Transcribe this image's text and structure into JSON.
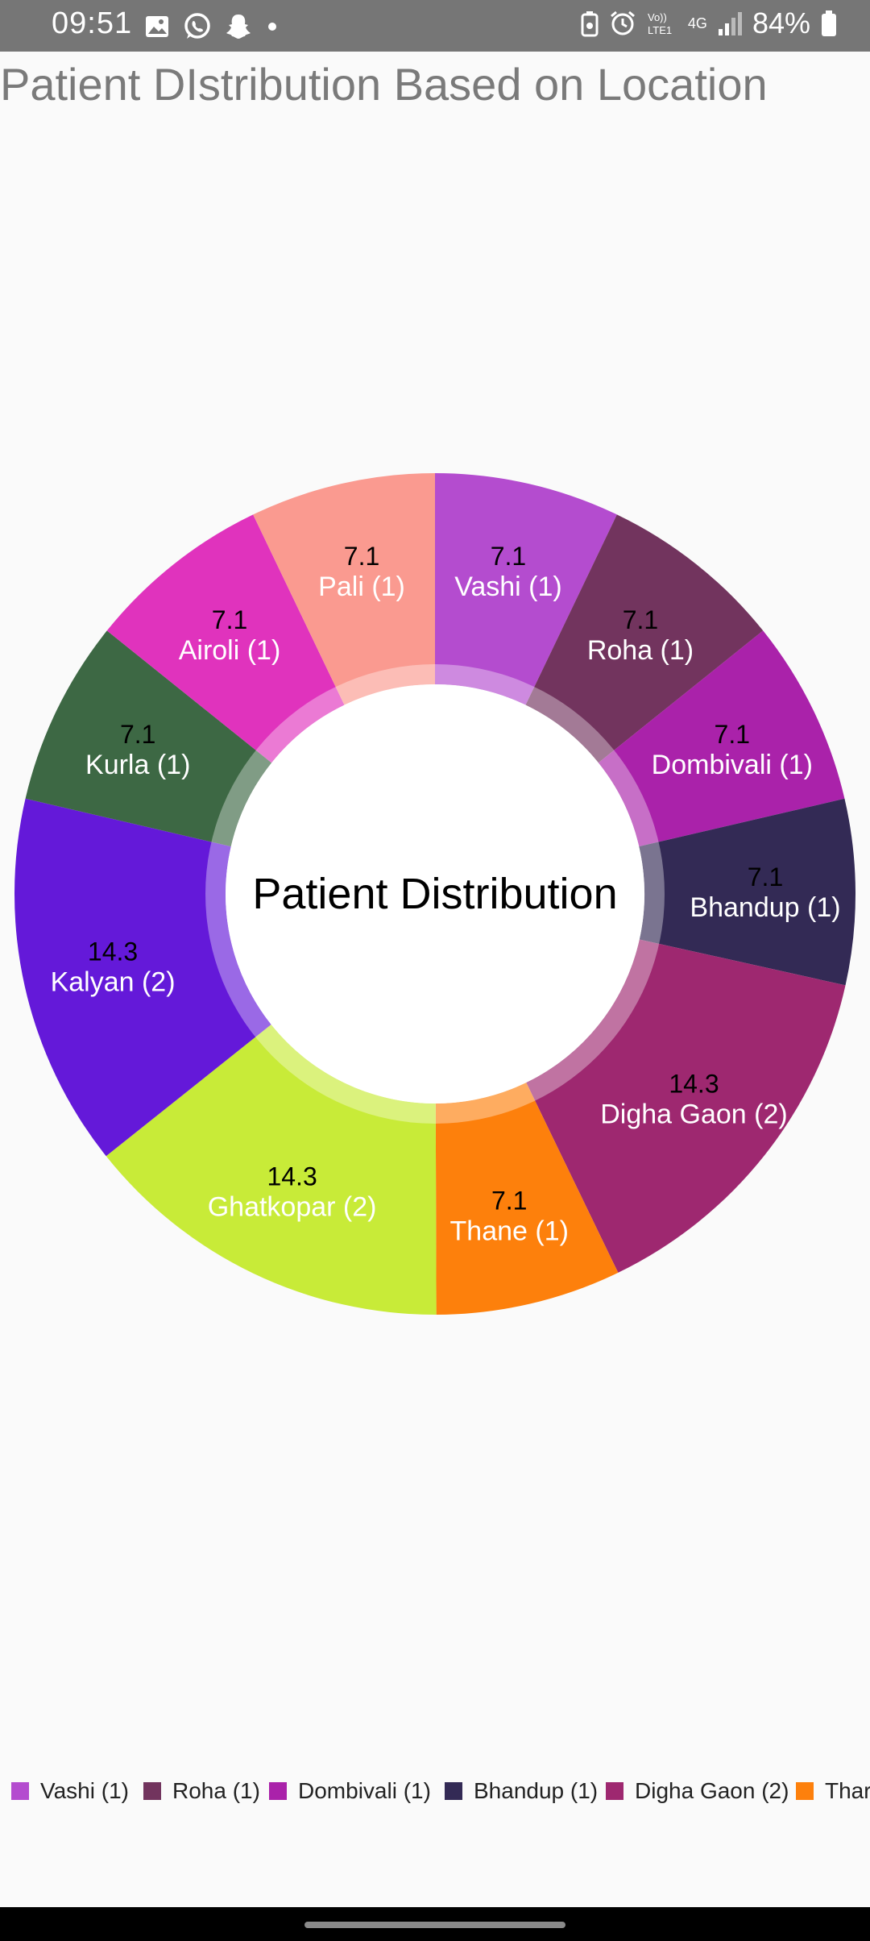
{
  "status_bar": {
    "time": "09:51",
    "battery": "84%",
    "network": "4G",
    "left_icons": [
      "gallery-icon",
      "whatsapp-icon",
      "snapchat-icon",
      "dot-icon"
    ],
    "right_icons": [
      "battery-saver-icon",
      "alarm-icon",
      "volte-icon",
      "signal-icon",
      "battery-icon"
    ]
  },
  "page": {
    "title": "Patient DIstribution Based on Location"
  },
  "chart_data": {
    "type": "pie",
    "center_label": "Patient Distribution",
    "slices": [
      {
        "label": "Vashi (1)",
        "value": 7.1,
        "color": "#b44ccf",
        "value_color": "#000000"
      },
      {
        "label": "Roha (1)",
        "value": 7.1,
        "color": "#72345e",
        "value_color": "#000000"
      },
      {
        "label": "Dombivali (1)",
        "value": 7.1,
        "color": "#aa22aa",
        "value_color": "#000000"
      },
      {
        "label": "Bhandup (1)",
        "value": 7.1,
        "color": "#332a55",
        "value_color": "#000000"
      },
      {
        "label": "Digha Gaon (2)",
        "value": 14.3,
        "color": "#9e2870",
        "value_color": "#000000"
      },
      {
        "label": "Thane  (1)",
        "value": 7.1,
        "color": "#fd800c",
        "value_color": "#000000"
      },
      {
        "label": "Ghatkopar (2)",
        "value": 14.3,
        "color": "#c8eb38",
        "value_color": "#000000"
      },
      {
        "label": "Kalyan (2)",
        "value": 14.3,
        "color": "#6419d9",
        "value_color": "#000000"
      },
      {
        "label": "Kurla (1)",
        "value": 7.1,
        "color": "#3d6844",
        "value_color": "#000000"
      },
      {
        "label": "Airoli (1)",
        "value": 7.1,
        "color": "#e033bd",
        "value_color": "#000000"
      },
      {
        "label": "Pali (1)",
        "value": 7.1,
        "color": "#fa9a90",
        "value_color": "#000000"
      }
    ],
    "legend": [
      "Vashi (1)",
      "Roha (1)",
      "Dombivali (1)",
      "Bhandup (1)",
      "Digha Gaon (2)",
      "Thar"
    ],
    "legend_placement": "bottom"
  }
}
